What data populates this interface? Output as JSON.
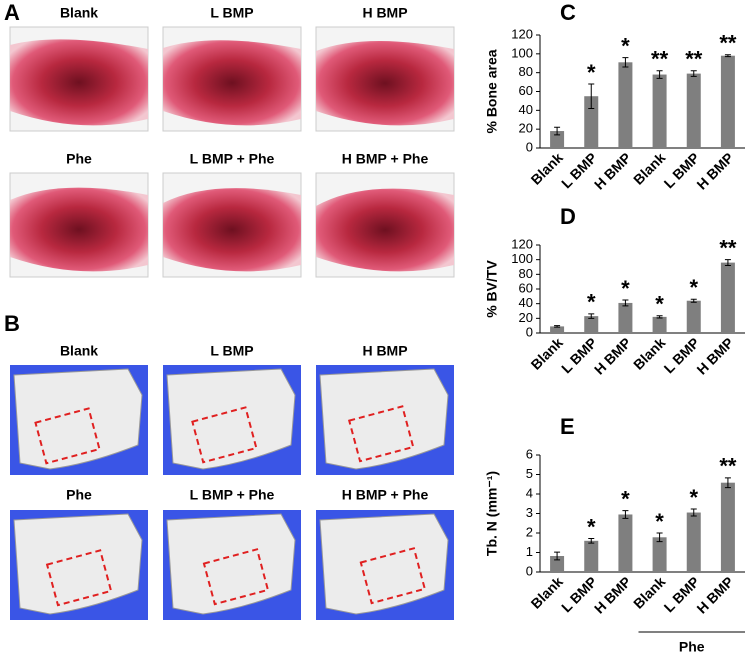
{
  "panels": {
    "a": {
      "letter": "A",
      "labels": [
        "Blank",
        "L BMP",
        "H BMP",
        "Phe",
        "L BMP + Phe",
        "H BMP + Phe"
      ]
    },
    "b": {
      "letter": "B",
      "labels": [
        "Blank",
        "L BMP",
        "H BMP",
        "Phe",
        "L BMP + Phe",
        "H BMP + Phe"
      ]
    }
  },
  "chart_data": [
    {
      "type": "bar",
      "panel": "C",
      "ylabel": "% Bone area",
      "categories": [
        "Blank",
        "L BMP",
        "H BMP",
        "Blank",
        "L BMP",
        "H BMP"
      ],
      "values": [
        18,
        55,
        91,
        78,
        79,
        98
      ],
      "errors": [
        4,
        13,
        5,
        4,
        3,
        1
      ],
      "annotations": [
        null,
        "*",
        "*",
        "**",
        "**",
        "**"
      ],
      "color": "#7f7f7f",
      "ylim": [
        0,
        120
      ],
      "yticks": [
        0,
        20,
        40,
        60,
        80,
        100,
        120
      ]
    },
    {
      "type": "bar",
      "panel": "D",
      "ylabel": "% BV/TV",
      "categories": [
        "Blank",
        "L BMP",
        "H BMP",
        "Blank",
        "L BMP",
        "H BMP"
      ],
      "values": [
        9,
        23,
        41,
        22,
        44,
        96
      ],
      "errors": [
        1,
        3,
        4,
        1.5,
        2,
        4
      ],
      "annotations": [
        null,
        "*",
        "*",
        "*",
        "*",
        "**"
      ],
      "color": "#7f7f7f",
      "ylim": [
        0,
        120
      ],
      "yticks": [
        0,
        20,
        40,
        60,
        80,
        100,
        120
      ]
    },
    {
      "type": "bar",
      "panel": "E",
      "ylabel": "Tb. N (mm⁻¹)",
      "categories": [
        "Blank",
        "L BMP",
        "H BMP",
        "Blank",
        "L BMP",
        "H BMP"
      ],
      "values": [
        0.82,
        1.6,
        2.95,
        1.78,
        3.05,
        4.58
      ],
      "errors": [
        0.2,
        0.12,
        0.2,
        0.22,
        0.18,
        0.25
      ],
      "annotations": [
        null,
        "*",
        "*",
        "*",
        "*",
        "**"
      ],
      "group_label": "Phe",
      "color": "#7f7f7f",
      "ylim": [
        0,
        6
      ],
      "yticks": [
        0,
        1,
        2,
        3,
        4,
        5,
        6
      ]
    }
  ]
}
